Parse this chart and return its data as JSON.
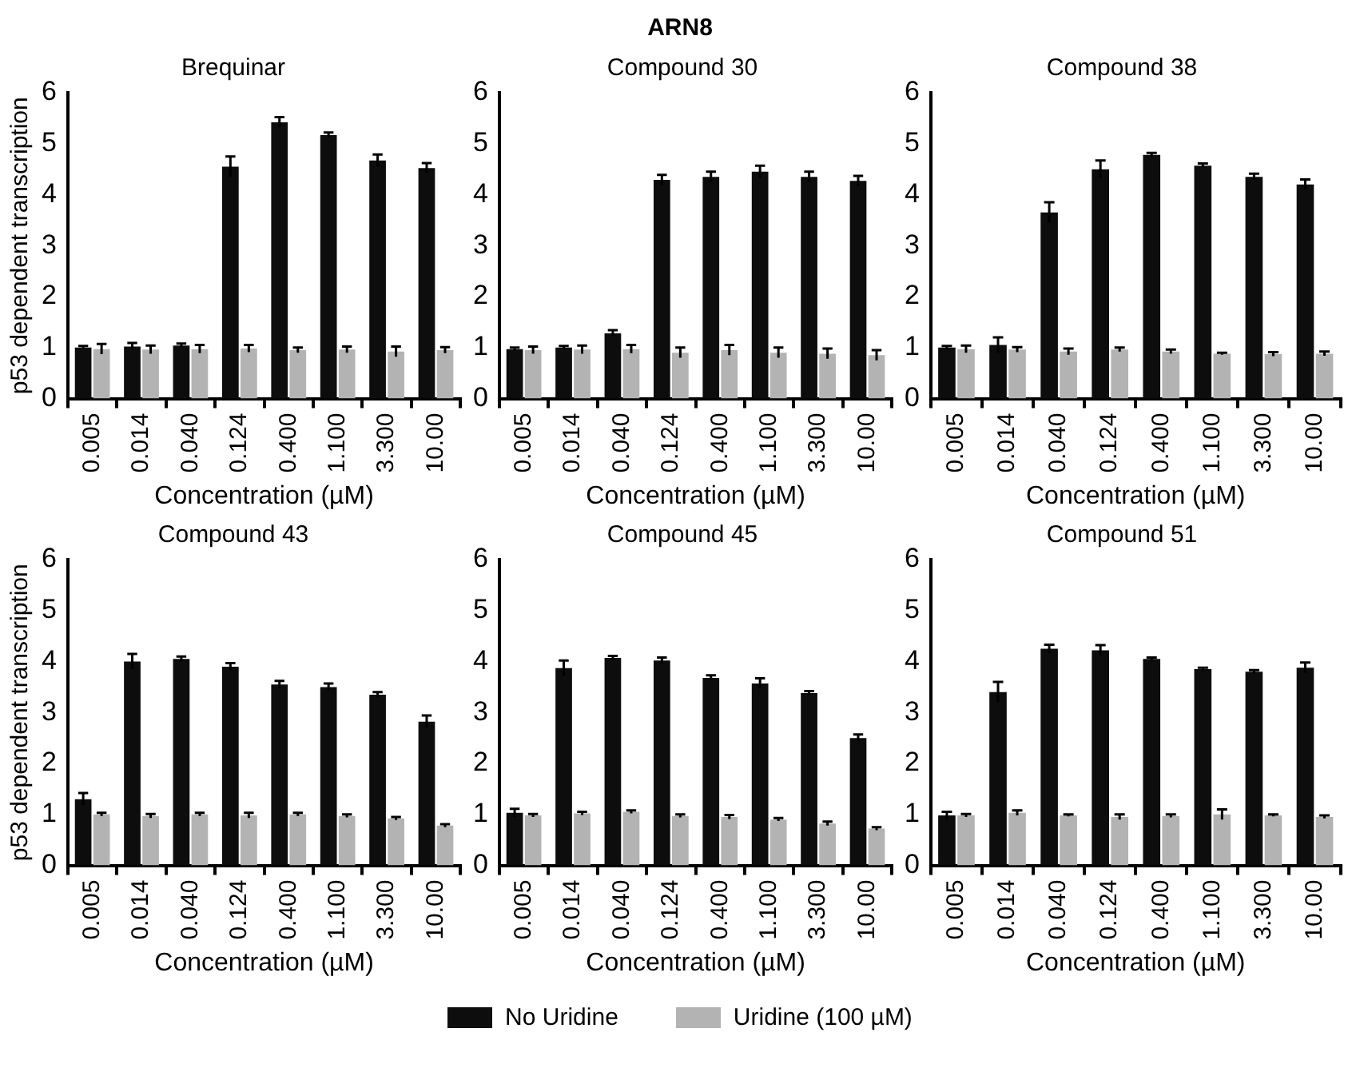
{
  "chart_data": [
    {
      "type": "bar",
      "title": "Brequinar",
      "annotations": [
        "ARN8"
      ],
      "xlabel": "Concentration (µM)",
      "ylabel": "p53 dependent transcription",
      "categories": [
        "0.005",
        "0.014",
        "0.040",
        "0.124",
        "0.400",
        "1.100",
        "3.300",
        "10.00"
      ],
      "ylim": [
        0,
        6
      ],
      "yticks": [
        0,
        1,
        2,
        3,
        4,
        5,
        6
      ],
      "grid": false,
      "legend": "bottom",
      "series": [
        {
          "name": "No Uridine",
          "color": "#0d0d0d",
          "values": [
            1.0,
            1.02,
            1.04,
            4.55,
            5.42,
            5.17,
            4.67,
            4.52
          ],
          "errors": [
            0.03,
            0.07,
            0.04,
            0.2,
            0.1,
            0.05,
            0.12,
            0.1
          ]
        },
        {
          "name": "Uridine (100 µM)",
          "color": "#b3b3b3",
          "values": [
            0.97,
            0.96,
            0.97,
            0.98,
            0.95,
            0.96,
            0.92,
            0.95
          ],
          "errors": [
            0.1,
            0.08,
            0.08,
            0.07,
            0.05,
            0.06,
            0.1,
            0.06
          ]
        }
      ]
    },
    {
      "type": "bar",
      "title": "Compound 30",
      "xlabel": "Concentration (µM)",
      "categories": [
        "0.005",
        "0.014",
        "0.040",
        "0.124",
        "0.400",
        "1.100",
        "3.300",
        "10.00"
      ],
      "ylim": [
        0,
        6
      ],
      "yticks": [
        0,
        1,
        2,
        3,
        4,
        5,
        6
      ],
      "grid": false,
      "series": [
        {
          "color": "#0d0d0d",
          "values": [
            0.97,
            1.0,
            1.28,
            4.29,
            4.35,
            4.45,
            4.35,
            4.27
          ],
          "errors": [
            0.03,
            0.03,
            0.06,
            0.1,
            0.1,
            0.12,
            0.1,
            0.1
          ]
        },
        {
          "color": "#b3b3b3",
          "values": [
            0.95,
            0.96,
            0.97,
            0.9,
            0.95,
            0.9,
            0.88,
            0.85
          ],
          "errors": [
            0.07,
            0.08,
            0.08,
            0.1,
            0.1,
            0.1,
            0.1,
            0.1
          ]
        }
      ]
    },
    {
      "type": "bar",
      "title": "Compound 38",
      "xlabel": "Concentration (µM)",
      "categories": [
        "0.005",
        "0.014",
        "0.040",
        "0.124",
        "0.400",
        "1.100",
        "3.300",
        "10.00"
      ],
      "ylim": [
        0,
        6
      ],
      "yticks": [
        0,
        1,
        2,
        3,
        4,
        5,
        6
      ],
      "grid": false,
      "series": [
        {
          "color": "#0d0d0d",
          "values": [
            1.0,
            1.05,
            3.65,
            4.5,
            4.78,
            4.57,
            4.35,
            4.2
          ],
          "errors": [
            0.03,
            0.15,
            0.2,
            0.17,
            0.04,
            0.04,
            0.06,
            0.1
          ]
        },
        {
          "color": "#b3b3b3",
          "values": [
            0.97,
            0.96,
            0.92,
            0.96,
            0.92,
            0.88,
            0.87,
            0.88
          ],
          "errors": [
            0.07,
            0.05,
            0.06,
            0.04,
            0.04,
            0.02,
            0.04,
            0.04
          ]
        }
      ]
    },
    {
      "type": "bar",
      "title": "Compound 43",
      "xlabel": "Concentration (µM)",
      "ylabel": "p53 dependent transcription",
      "categories": [
        "0.005",
        "0.014",
        "0.040",
        "0.124",
        "0.400",
        "1.100",
        "3.300",
        "10.00"
      ],
      "ylim": [
        0,
        6
      ],
      "yticks": [
        0,
        1,
        2,
        3,
        4,
        5,
        6
      ],
      "grid": false,
      "series": [
        {
          "color": "#0d0d0d",
          "values": [
            1.3,
            4.0,
            4.05,
            3.9,
            3.55,
            3.5,
            3.35,
            2.82
          ],
          "errors": [
            0.12,
            0.15,
            0.05,
            0.07,
            0.07,
            0.07,
            0.05,
            0.12
          ]
        },
        {
          "color": "#b3b3b3",
          "values": [
            1.0,
            0.97,
            1.0,
            0.98,
            1.0,
            0.97,
            0.92,
            0.78
          ],
          "errors": [
            0.03,
            0.04,
            0.03,
            0.05,
            0.03,
            0.03,
            0.03,
            0.03
          ]
        }
      ]
    },
    {
      "type": "bar",
      "title": "Compound 45",
      "xlabel": "Concentration (µM)",
      "categories": [
        "0.005",
        "0.014",
        "0.040",
        "0.124",
        "0.400",
        "1.100",
        "3.300",
        "10.00"
      ],
      "ylim": [
        0,
        6
      ],
      "yticks": [
        0,
        1,
        2,
        3,
        4,
        5,
        6
      ],
      "grid": false,
      "series": [
        {
          "color": "#0d0d0d",
          "values": [
            1.03,
            3.87,
            4.07,
            4.02,
            3.68,
            3.57,
            3.38,
            2.5
          ],
          "errors": [
            0.08,
            0.15,
            0.04,
            0.06,
            0.05,
            0.1,
            0.04,
            0.07
          ]
        },
        {
          "color": "#b3b3b3",
          "values": [
            0.98,
            1.02,
            1.05,
            0.97,
            0.95,
            0.9,
            0.82,
            0.72
          ],
          "errors": [
            0.03,
            0.03,
            0.03,
            0.03,
            0.04,
            0.03,
            0.04,
            0.03
          ]
        }
      ]
    },
    {
      "type": "bar",
      "title": "Compound 51",
      "xlabel": "Concentration (µM)",
      "categories": [
        "0.005",
        "0.014",
        "0.040",
        "0.124",
        "0.400",
        "1.100",
        "3.300",
        "10.00"
      ],
      "ylim": [
        0,
        6
      ],
      "yticks": [
        0,
        1,
        2,
        3,
        4,
        5,
        6
      ],
      "grid": false,
      "series": [
        {
          "color": "#0d0d0d",
          "values": [
            0.98,
            3.4,
            4.25,
            4.22,
            4.05,
            3.85,
            3.8,
            3.88
          ],
          "errors": [
            0.07,
            0.2,
            0.08,
            0.1,
            0.03,
            0.03,
            0.03,
            0.1
          ]
        },
        {
          "color": "#b3b3b3",
          "values": [
            0.98,
            1.03,
            0.98,
            0.95,
            0.97,
            1.0,
            0.98,
            0.95
          ],
          "errors": [
            0.03,
            0.05,
            0.02,
            0.05,
            0.03,
            0.1,
            0.02,
            0.03
          ]
        }
      ]
    }
  ]
}
